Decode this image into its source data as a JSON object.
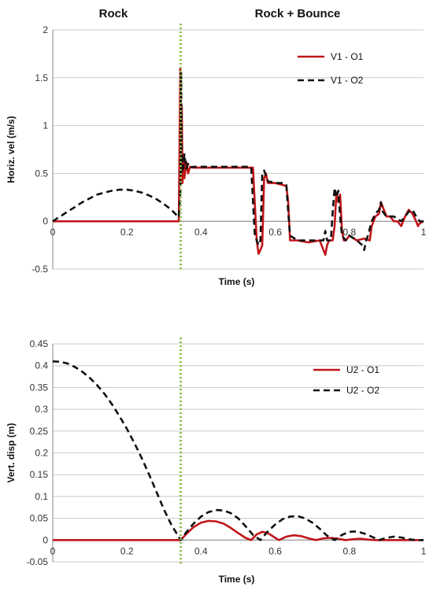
{
  "phase_labels": {
    "rock": "Rock",
    "rock_bounce": "Rock + Bounce"
  },
  "colors": {
    "o1": "#c0161a",
    "o2": "#111111",
    "divider": "#8fbc45",
    "grid": "#c8c8c8"
  },
  "chart_data": [
    {
      "type": "line",
      "xlabel": "Time (s)",
      "ylabel": "Horiz. vel (m/s)",
      "xlim": [
        0,
        1
      ],
      "ylim": [
        -0.5,
        2
      ],
      "xticks": [
        0,
        0.2,
        0.4,
        0.6,
        0.8,
        1
      ],
      "xtick_labels": [
        "0",
        "0.2",
        "0.4",
        "0.6",
        "0.8",
        "1"
      ],
      "yticks": [
        -0.5,
        0,
        0.5,
        1,
        1.5,
        2
      ],
      "ytick_labels": [
        "-0.5",
        "0",
        "0.5",
        "1",
        "1.5",
        "2"
      ],
      "grid": true,
      "legend": "top-right",
      "divider_x": 0.345,
      "series": [
        {
          "name": "V1 - O1",
          "style": "solid",
          "x": [
            0,
            0.34,
            0.344,
            0.346,
            0.348,
            0.35,
            0.352,
            0.355,
            0.36,
            0.365,
            0.37,
            0.38,
            0.4,
            0.45,
            0.5,
            0.54,
            0.55,
            0.555,
            0.56,
            0.565,
            0.57,
            0.575,
            0.58,
            0.6,
            0.62,
            0.63,
            0.635,
            0.64,
            0.645,
            0.66,
            0.69,
            0.72,
            0.735,
            0.74,
            0.745,
            0.755,
            0.76,
            0.765,
            0.77,
            0.775,
            0.78,
            0.785,
            0.79,
            0.8,
            0.82,
            0.84,
            0.855,
            0.86,
            0.87,
            0.88,
            0.885,
            0.89,
            0.9,
            0.91,
            0.92,
            0.93,
            0.94,
            0.95,
            0.96,
            0.97,
            0.98,
            0.985,
            0.99,
            1.0
          ],
          "y": [
            0,
            0,
            1.6,
            0.4,
            1.2,
            0.4,
            0.7,
            0.45,
            0.62,
            0.5,
            0.57,
            0.56,
            0.56,
            0.56,
            0.56,
            0.56,
            -0.2,
            -0.34,
            -0.3,
            -0.25,
            0.45,
            0.5,
            0.4,
            0.4,
            0.38,
            0.37,
            0.2,
            -0.2,
            -0.2,
            -0.2,
            -0.22,
            -0.2,
            -0.35,
            -0.25,
            -0.2,
            -0.2,
            -0.05,
            0.3,
            0.2,
            0.28,
            -0.1,
            -0.2,
            -0.2,
            -0.15,
            -0.2,
            -0.18,
            -0.2,
            -0.05,
            0.05,
            0.08,
            0.2,
            0.15,
            0.05,
            0.05,
            0.0,
            0.0,
            -0.05,
            0.05,
            0.12,
            0.08,
            0.0,
            -0.05,
            -0.02,
            0.0
          ]
        },
        {
          "name": "V1 - O2",
          "style": "dashed",
          "x": [
            0,
            0.02,
            0.04,
            0.06,
            0.08,
            0.1,
            0.12,
            0.14,
            0.16,
            0.18,
            0.2,
            0.22,
            0.24,
            0.26,
            0.28,
            0.3,
            0.32,
            0.34,
            0.344,
            0.346,
            0.348,
            0.35,
            0.352,
            0.355,
            0.36,
            0.365,
            0.37,
            0.38,
            0.4,
            0.45,
            0.5,
            0.535,
            0.545,
            0.55,
            0.555,
            0.56,
            0.565,
            0.57,
            0.58,
            0.6,
            0.62,
            0.63,
            0.635,
            0.64,
            0.66,
            0.7,
            0.73,
            0.735,
            0.74,
            0.75,
            0.755,
            0.76,
            0.765,
            0.77,
            0.775,
            0.78,
            0.79,
            0.8,
            0.82,
            0.835,
            0.84,
            0.845,
            0.85,
            0.86,
            0.87,
            0.88,
            0.885,
            0.89,
            0.9,
            0.92,
            0.94,
            0.96,
            0.97,
            0.98,
            0.99,
            1.0
          ],
          "y": [
            0,
            0.05,
            0.1,
            0.15,
            0.2,
            0.24,
            0.28,
            0.3,
            0.32,
            0.33,
            0.33,
            0.32,
            0.3,
            0.27,
            0.23,
            0.18,
            0.12,
            0.04,
            0.3,
            1.55,
            0.5,
            0.65,
            0.55,
            0.7,
            0.55,
            0.6,
            0.56,
            0.57,
            0.57,
            0.57,
            0.57,
            0.57,
            -0.15,
            -0.2,
            -0.25,
            -0.2,
            0.5,
            0.53,
            0.42,
            0.4,
            0.4,
            0.38,
            0.1,
            -0.15,
            -0.2,
            -0.2,
            -0.2,
            -0.1,
            -0.2,
            -0.2,
            0.1,
            0.35,
            0.25,
            0.32,
            0.05,
            -0.15,
            -0.2,
            -0.15,
            -0.2,
            -0.25,
            -0.3,
            -0.2,
            -0.15,
            0.0,
            0.08,
            0.12,
            0.2,
            0.1,
            0.05,
            0.05,
            0.0,
            0.1,
            0.12,
            0.05,
            0.0,
            0.0
          ]
        }
      ]
    },
    {
      "type": "line",
      "xlabel": "Time (s)",
      "ylabel": "Vert. disp (m)",
      "xlim": [
        0,
        1
      ],
      "ylim": [
        -0.05,
        0.45
      ],
      "xticks": [
        0,
        0.2,
        0.4,
        0.6,
        0.8,
        1
      ],
      "xtick_labels": [
        "0",
        "0.2",
        "0.4",
        "0.6",
        "0.8",
        "1"
      ],
      "yticks": [
        -0.05,
        0,
        0.05,
        0.1,
        0.15,
        0.2,
        0.25,
        0.3,
        0.35,
        0.4,
        0.45
      ],
      "ytick_labels": [
        "-0.05",
        "0",
        "0.05",
        "0.1",
        "0.15",
        "0.2",
        "0.25",
        "0.3",
        "0.35",
        "0.4",
        "0.45"
      ],
      "grid": true,
      "legend": "top-right",
      "divider_x": 0.345,
      "series": [
        {
          "name": "U2 - O1",
          "style": "solid",
          "x": [
            0,
            0.345,
            0.36,
            0.38,
            0.4,
            0.42,
            0.44,
            0.46,
            0.48,
            0.5,
            0.52,
            0.535,
            0.55,
            0.565,
            0.58,
            0.595,
            0.61,
            0.63,
            0.65,
            0.67,
            0.69,
            0.71,
            0.73,
            0.75,
            0.77,
            0.79,
            0.81,
            0.83,
            0.85,
            0.87,
            0.9,
            0.95,
            1.0
          ],
          "y": [
            0,
            0,
            0.014,
            0.03,
            0.04,
            0.044,
            0.043,
            0.038,
            0.028,
            0.016,
            0.005,
            0,
            0.013,
            0.019,
            0.016,
            0.008,
            0,
            0.008,
            0.011,
            0.009,
            0.004,
            0,
            0.004,
            0.005,
            0.003,
            0,
            0.002,
            0.003,
            0.001,
            0,
            0,
            0,
            0
          ]
        },
        {
          "name": "U2 - O2",
          "style": "dashed",
          "x": [
            0,
            0.02,
            0.04,
            0.06,
            0.08,
            0.1,
            0.12,
            0.14,
            0.16,
            0.18,
            0.2,
            0.22,
            0.24,
            0.26,
            0.28,
            0.3,
            0.32,
            0.345,
            0.36,
            0.38,
            0.4,
            0.42,
            0.44,
            0.46,
            0.48,
            0.5,
            0.52,
            0.54,
            0.56,
            0.58,
            0.6,
            0.62,
            0.64,
            0.66,
            0.68,
            0.7,
            0.72,
            0.74,
            0.76,
            0.78,
            0.8,
            0.82,
            0.84,
            0.86,
            0.88,
            0.9,
            0.92,
            0.94,
            0.96,
            0.98,
            1.0
          ],
          "y": [
            0.41,
            0.409,
            0.405,
            0.397,
            0.386,
            0.372,
            0.355,
            0.335,
            0.311,
            0.284,
            0.255,
            0.223,
            0.188,
            0.15,
            0.11,
            0.07,
            0.035,
            0,
            0.018,
            0.038,
            0.054,
            0.064,
            0.069,
            0.068,
            0.062,
            0.05,
            0.032,
            0.012,
            0,
            0.02,
            0.036,
            0.048,
            0.054,
            0.055,
            0.05,
            0.04,
            0.026,
            0.01,
            0,
            0.012,
            0.019,
            0.02,
            0.015,
            0.008,
            0,
            0.005,
            0.008,
            0.006,
            0.002,
            0,
            0
          ]
        }
      ]
    }
  ]
}
